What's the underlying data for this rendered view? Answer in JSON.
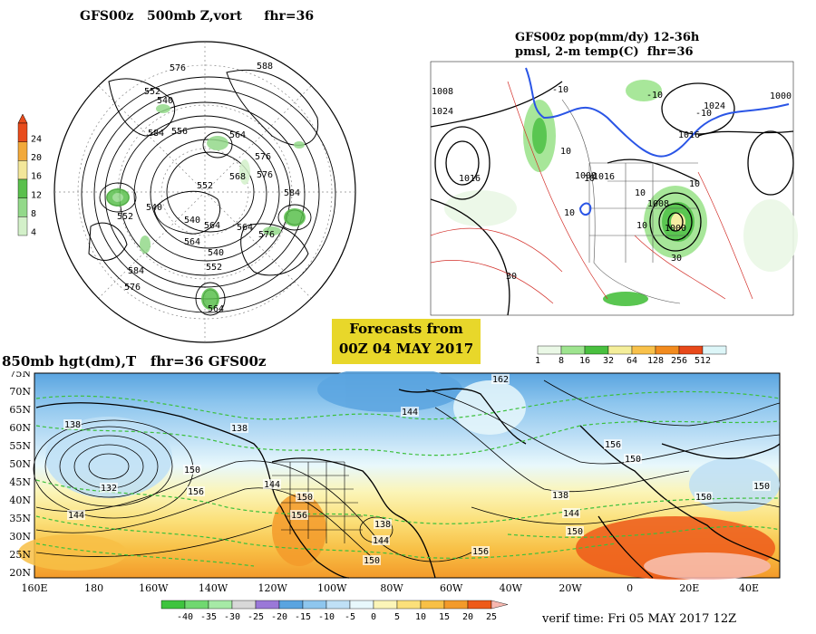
{
  "titles": {
    "polar": "GFS00z   500mb Z,vort     fhr=36",
    "pop_line1": "GFS00z pop(mm/dy) 12-36h",
    "pop_line2": "pmsl, 2-m temp(C)  fhr=36",
    "panel850": "850mb hgt(dm),T   fhr=36 GFS00z"
  },
  "forecast_box": {
    "line1": "Forecasts from",
    "line2": "00Z 04 MAY 2017"
  },
  "verif_time": "verif time: Fri 05 MAY 2017 12Z",
  "vort_legend": {
    "ticks": [
      "24",
      "20",
      "16",
      "12",
      "8",
      "4"
    ],
    "colors": [
      "#e84c1c",
      "#f2a93a",
      "#f3e79a",
      "#5ac04d",
      "#93d98a",
      "#d3f0c9"
    ]
  },
  "pop_legend": {
    "ticks": [
      "1",
      "8",
      "16",
      "32",
      "64",
      "128",
      "256",
      "512"
    ],
    "colors": [
      "#eaf8e6",
      "#9ee48f",
      "#49c03f",
      "#f4ee9a",
      "#f8c14a",
      "#f28b1e",
      "#e8491a",
      "#ddf6f8"
    ]
  },
  "temp_legend": {
    "ticks": [
      "-40",
      "-35",
      "-30",
      "-25",
      "-20",
      "-15",
      "-10",
      "-5",
      "0",
      "5",
      "10",
      "15",
      "20",
      "25"
    ],
    "colors": [
      "#3fc43f",
      "#70d870",
      "#a6eaa6",
      "#d8d8d8",
      "#9a78d8",
      "#5aa4e0",
      "#8ec6ee",
      "#bfe0f6",
      "#e8f8fc",
      "#fbf5b8",
      "#fbe07a",
      "#f8c046",
      "#f39a2a",
      "#ee5a1a"
    ]
  },
  "polar_labels": [
    "576",
    "588",
    "552",
    "540",
    "556",
    "564",
    "576",
    "584",
    "552",
    "540",
    "564",
    "576",
    "584",
    "576",
    "564",
    "552",
    "540",
    "564",
    "552",
    "568",
    "576",
    "584",
    "564",
    "540"
  ],
  "pop_labels": {
    "isobars": [
      "1008",
      "1024",
      "1016",
      "1000",
      "1008",
      "1024",
      "1016",
      "1008",
      "1016",
      "1000"
    ],
    "temps": [
      "-10",
      "-10",
      "-10",
      "10",
      "10",
      "10",
      "10",
      "10",
      "10",
      "30",
      "30"
    ]
  },
  "lat_labels": [
    "75N",
    "70N",
    "65N",
    "60N",
    "55N",
    "50N",
    "45N",
    "40N",
    "35N",
    "30N",
    "25N",
    "20N"
  ],
  "lon_labels": [
    "160E",
    "180",
    "160W",
    "140W",
    "120W",
    "100W",
    "80W",
    "60W",
    "40W",
    "20W",
    "0",
    "20E",
    "40E"
  ],
  "map850_labels": [
    "138",
    "132",
    "144",
    "150",
    "156",
    "138",
    "144",
    "150",
    "156",
    "162",
    "144",
    "156",
    "150",
    "138",
    "144",
    "150",
    "156",
    "138",
    "144",
    "150",
    "150",
    "150"
  ]
}
